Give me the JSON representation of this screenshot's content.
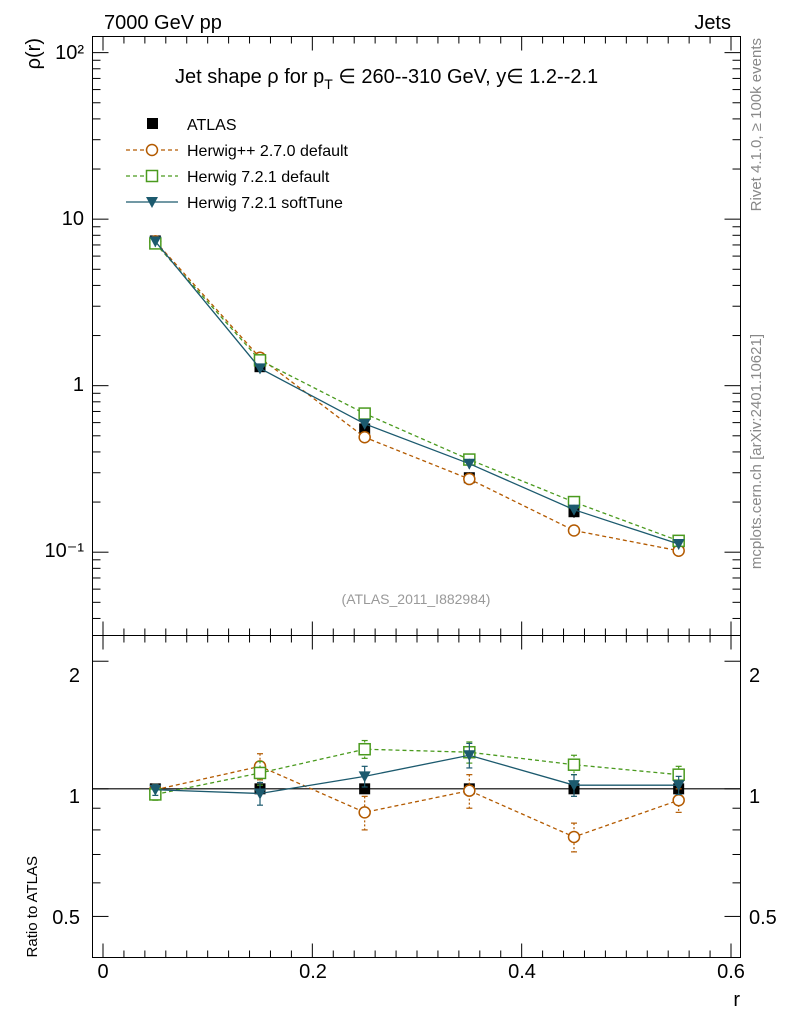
{
  "header": {
    "left": "7000 GeV pp",
    "right": "Jets"
  },
  "side_labels": {
    "top": "Rivet 4.1.0, ≥ 100k events",
    "bottom": "mcplots.cern.ch [arXiv:2401.10621]"
  },
  "watermark": "(ATLAS_2011_I882984)",
  "chart_data": {
    "type": "line",
    "title_parts": {
      "a": "Jet shape ρ for p",
      "sub": "T",
      "b": " ∈ 260--310 GeV, y∈ 1.2--2.1"
    },
    "xlabel": "r",
    "ylabel": "ρ(r)",
    "ratio_ylabel": "Ratio to ATLAS",
    "xlim": [
      0,
      0.6
    ],
    "ylim_log": [
      0.0316,
      125
    ],
    "ratio_ylim": [
      0.4,
      2.3
    ],
    "x_ticks": [
      "0",
      "0.2",
      "0.4",
      "0.6"
    ],
    "y_ticks": [
      "10⁻¹",
      "1",
      "10",
      "10²"
    ],
    "ratio_ticks": [
      "0.5",
      "1",
      "2"
    ],
    "x": [
      0.05,
      0.15,
      0.25,
      0.35,
      0.45,
      0.55
    ],
    "data": {
      "name": "ATLAS",
      "values": [
        7.4,
        1.3,
        0.55,
        0.28,
        0.175,
        0.108
      ]
    },
    "series": [
      {
        "name": "Herwig++ 2.7.0 default",
        "color": "#b35a00",
        "dash": true,
        "marker": "circle",
        "values": [
          7.35,
          1.47,
          0.49,
          0.275,
          0.135,
          0.102
        ],
        "ratio": [
          0.995,
          1.13,
          0.88,
          0.99,
          0.77,
          0.94
        ],
        "ratio_err": [
          0.03,
          0.08,
          0.08,
          0.09,
          0.06,
          0.06
        ]
      },
      {
        "name": "Herwig 7.2.1 default",
        "color": "#4a9a1e",
        "dash": true,
        "marker": "square",
        "values": [
          7.15,
          1.42,
          0.68,
          0.36,
          0.2,
          0.117
        ],
        "ratio": [
          0.97,
          1.09,
          1.24,
          1.22,
          1.14,
          1.08
        ],
        "ratio_err": [
          0.03,
          0.07,
          0.06,
          0.07,
          0.06,
          0.05
        ]
      },
      {
        "name": "Herwig 7.2.1 softTune",
        "color": "#1c5a6e",
        "dash": false,
        "marker": "triangle",
        "values": [
          7.35,
          1.27,
          0.59,
          0.34,
          0.18,
          0.112
        ],
        "ratio": [
          0.995,
          0.975,
          1.07,
          1.2,
          1.02,
          1.02
        ],
        "ratio_err": [
          0.03,
          0.06,
          0.06,
          0.08,
          0.06,
          0.05
        ]
      }
    ]
  }
}
